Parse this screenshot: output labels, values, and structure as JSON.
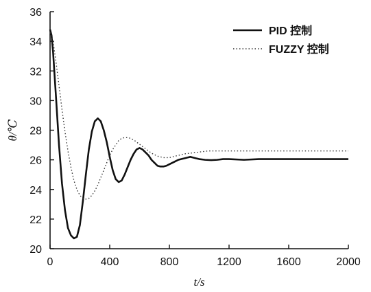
{
  "chart_data": {
    "type": "line",
    "title": "",
    "xlabel": "t/s",
    "ylabel": "θ/℃",
    "xlim": [
      0,
      2000
    ],
    "ylim": [
      20,
      36
    ],
    "xticks": [
      0,
      400,
      800,
      1200,
      1600,
      2000
    ],
    "yticks": [
      20,
      22,
      24,
      26,
      28,
      30,
      32,
      34,
      36
    ],
    "grid": false,
    "legend_position": "top-right",
    "series": [
      {
        "name": "PID 控制",
        "style": "solid",
        "color": "#111111",
        "x": [
          0,
          10,
          20,
          40,
          60,
          80,
          100,
          120,
          140,
          160,
          180,
          200,
          220,
          240,
          260,
          280,
          300,
          320,
          340,
          360,
          380,
          400,
          420,
          440,
          460,
          480,
          500,
          520,
          540,
          560,
          580,
          600,
          620,
          640,
          660,
          680,
          700,
          720,
          740,
          760,
          780,
          800,
          820,
          840,
          860,
          880,
          900,
          920,
          940,
          960,
          980,
          1000,
          1040,
          1080,
          1120,
          1160,
          1200,
          1300,
          1400,
          1500,
          1600,
          1700,
          1800,
          1900,
          2000
        ],
        "values": [
          34.8,
          34.4,
          33.3,
          30.2,
          27.0,
          24.4,
          22.6,
          21.4,
          20.9,
          20.7,
          20.8,
          21.6,
          23.2,
          25.0,
          26.7,
          27.9,
          28.6,
          28.8,
          28.6,
          28.0,
          27.2,
          26.2,
          25.3,
          24.7,
          24.5,
          24.6,
          25.0,
          25.5,
          26.0,
          26.4,
          26.7,
          26.8,
          26.7,
          26.5,
          26.3,
          26.0,
          25.8,
          25.6,
          25.55,
          25.55,
          25.6,
          25.7,
          25.8,
          25.9,
          26.0,
          26.05,
          26.1,
          26.15,
          26.2,
          26.15,
          26.1,
          26.05,
          26.0,
          25.98,
          26.0,
          26.05,
          26.05,
          26.0,
          26.05,
          26.05,
          26.05,
          26.05,
          26.05,
          26.05,
          26.05
        ]
      },
      {
        "name": "FUZZY 控制",
        "style": "dotted",
        "color": "#333333",
        "x": [
          0,
          20,
          40,
          60,
          80,
          100,
          120,
          140,
          160,
          180,
          200,
          220,
          240,
          260,
          280,
          300,
          320,
          340,
          360,
          380,
          400,
          420,
          440,
          460,
          480,
          500,
          520,
          540,
          560,
          580,
          600,
          620,
          640,
          660,
          680,
          700,
          720,
          740,
          760,
          780,
          800,
          820,
          840,
          860,
          880,
          900,
          940,
          980,
          1020,
          1060,
          1100,
          1150,
          1200,
          1300,
          1400,
          1500,
          1600,
          1700,
          1800,
          1900,
          2000
        ],
        "values": [
          34.6,
          34.0,
          32.6,
          31.0,
          29.4,
          27.9,
          26.6,
          25.5,
          24.6,
          24.0,
          23.6,
          23.4,
          23.35,
          23.4,
          23.6,
          23.9,
          24.3,
          24.8,
          25.3,
          25.8,
          26.3,
          26.7,
          27.0,
          27.3,
          27.45,
          27.5,
          27.5,
          27.45,
          27.35,
          27.2,
          27.05,
          26.9,
          26.75,
          26.6,
          26.45,
          26.35,
          26.25,
          26.2,
          26.15,
          26.15,
          26.15,
          26.2,
          26.25,
          26.3,
          26.35,
          26.4,
          26.45,
          26.5,
          26.55,
          26.6,
          26.6,
          26.6,
          26.6,
          26.6,
          26.6,
          26.6,
          26.6,
          26.6,
          26.6,
          26.6,
          26.6
        ]
      }
    ]
  }
}
